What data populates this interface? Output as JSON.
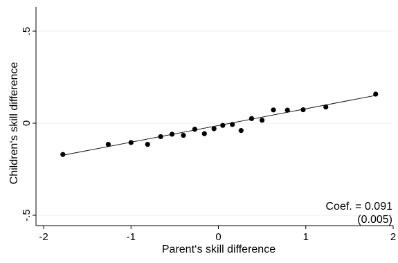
{
  "chart_data": {
    "type": "scatter",
    "xlabel": "Parent‘s skill difference",
    "ylabel": "Children‘s skill difference",
    "xlim": [
      -2,
      2
    ],
    "ylim": [
      -0.5,
      0.5
    ],
    "x_ticks": [
      -2,
      -1,
      0,
      1,
      2
    ],
    "x_tick_labels": [
      "-2",
      "-1",
      "0",
      "1",
      "2"
    ],
    "y_ticks": [
      -0.5,
      0,
      0.5
    ],
    "y_tick_labels": [
      "-.5",
      "0",
      ".5"
    ],
    "grid": "horizontal",
    "points": [
      {
        "x": -1.78,
        "y": -0.17
      },
      {
        "x": -1.26,
        "y": -0.115
      },
      {
        "x": -1.0,
        "y": -0.105
      },
      {
        "x": -0.81,
        "y": -0.115
      },
      {
        "x": -0.66,
        "y": -0.073
      },
      {
        "x": -0.53,
        "y": -0.06
      },
      {
        "x": -0.4,
        "y": -0.066
      },
      {
        "x": -0.27,
        "y": -0.033
      },
      {
        "x": -0.16,
        "y": -0.057
      },
      {
        "x": -0.05,
        "y": -0.03
      },
      {
        "x": 0.05,
        "y": -0.012
      },
      {
        "x": 0.16,
        "y": -0.007
      },
      {
        "x": 0.26,
        "y": -0.04
      },
      {
        "x": 0.38,
        "y": 0.025
      },
      {
        "x": 0.5,
        "y": 0.016
      },
      {
        "x": 0.63,
        "y": 0.072
      },
      {
        "x": 0.79,
        "y": 0.071
      },
      {
        "x": 0.97,
        "y": 0.073
      },
      {
        "x": 1.23,
        "y": 0.088
      },
      {
        "x": 1.8,
        "y": 0.158
      }
    ],
    "fit_line": {
      "x": [
        -1.79,
        1.79
      ],
      "y": [
        -0.175,
        0.15
      ]
    },
    "annotation": {
      "coef": "Coef. = 0.091",
      "se": "(0.005)"
    }
  }
}
